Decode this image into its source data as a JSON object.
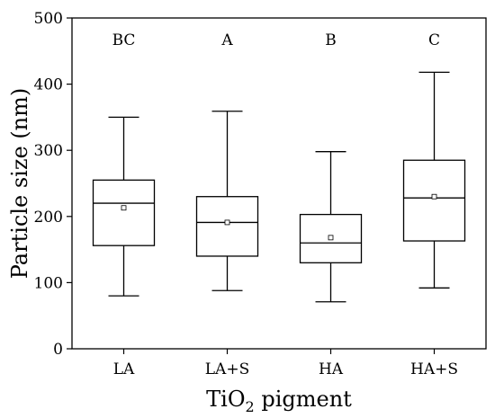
{
  "chart_data": {
    "type": "box",
    "title": "",
    "xlabel_main": "TiO",
    "xlabel_sub": "2",
    "xlabel_rest": " pigment",
    "ylabel": "Particle size (nm)",
    "ylim": [
      0,
      500
    ],
    "yticks": [
      0,
      100,
      200,
      300,
      400,
      500
    ],
    "categories": [
      "LA",
      "LA+S",
      "HA",
      "HA+S"
    ],
    "groups": [
      "BC",
      "A",
      "B",
      "C"
    ],
    "boxes": [
      {
        "whisker_low": 80,
        "q1": 156,
        "median": 220,
        "q3": 255,
        "whisker_high": 350,
        "mean": 213
      },
      {
        "whisker_low": 88,
        "q1": 140,
        "median": 191,
        "q3": 230,
        "whisker_high": 359,
        "mean": 191
      },
      {
        "whisker_low": 71,
        "q1": 130,
        "median": 160,
        "q3": 203,
        "whisker_high": 298,
        "mean": 168
      },
      {
        "whisker_low": 92,
        "q1": 163,
        "median": 228,
        "q3": 285,
        "whisker_high": 418,
        "mean": 230
      }
    ],
    "grid": false,
    "legend": "none"
  }
}
